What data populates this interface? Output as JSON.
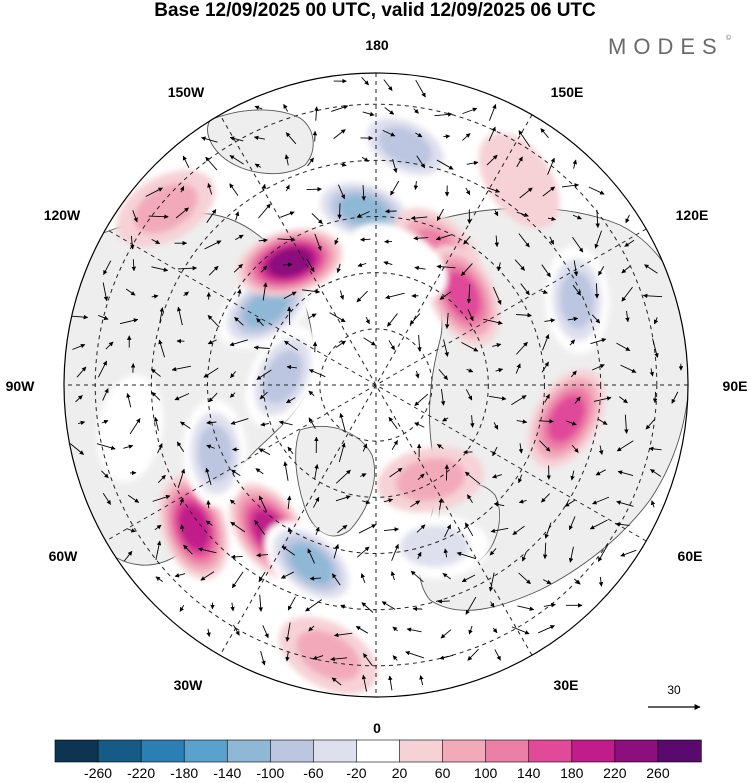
{
  "title": "Base 12/09/2025 00 UTC, valid 12/09/2025 06 UTC",
  "brand": {
    "name": "MODES",
    "mark": "©"
  },
  "longitude_labels": {
    "lon_180": "180",
    "lon_150e": "150E",
    "lon_120e": "120E",
    "lon_90e": "90E",
    "lon_60e": "60E",
    "lon_30e": "30E",
    "lon_0": "0",
    "lon_30w": "30W",
    "lon_60w": "60W",
    "lon_90w": "90W",
    "lon_120w": "120W",
    "lon_150w": "150W"
  },
  "vector_reference": {
    "label": "30"
  },
  "colorbar": {
    "ticks": [
      "-260",
      "-220",
      "-180",
      "-140",
      "-100",
      "-60",
      "-20",
      "20",
      "60",
      "100",
      "140",
      "180",
      "220",
      "260"
    ],
    "colors": [
      "#0d3552",
      "#165b86",
      "#2b7fb4",
      "#5aa2cd",
      "#8fb8d6",
      "#bcc6e0",
      "#dfe0ee",
      "#ffffff",
      "#f6d2d6",
      "#f2aabb",
      "#ec7fa6",
      "#e04a99",
      "#c01c8a",
      "#8c0f7d",
      "#5a0a6e"
    ]
  },
  "map_colors": {
    "land": "#eeeeee",
    "ocean": "#ffffff",
    "coast": "#555555",
    "grid": "#222222",
    "arrow": "#000000"
  },
  "anomaly_features": [
    {
      "value": 180,
      "bearing_deg": 232,
      "dist": 0.74
    },
    {
      "value": 200,
      "bearing_deg": 216,
      "dist": 0.58
    },
    {
      "value": -140,
      "bearing_deg": 200,
      "dist": 0.61
    },
    {
      "value": -100,
      "bearing_deg": 247,
      "dist": 0.56
    },
    {
      "value": -100,
      "bearing_deg": 275,
      "dist": 0.3
    },
    {
      "value": -140,
      "bearing_deg": 305,
      "dist": 0.43
    },
    {
      "value": 240,
      "bearing_deg": 325,
      "dist": 0.48
    },
    {
      "value": -140,
      "bearing_deg": 356,
      "dist": 0.56
    },
    {
      "value": 100,
      "bearing_deg": 25,
      "dist": 0.47
    },
    {
      "value": 160,
      "bearing_deg": 44,
      "dist": 0.4
    },
    {
      "value": 140,
      "bearing_deg": 100,
      "dist": 0.62
    },
    {
      "value": -120,
      "bearing_deg": 67,
      "dist": 0.7
    },
    {
      "value": -100,
      "bearing_deg": 7,
      "dist": 0.77
    },
    {
      "value": -40,
      "bearing_deg": 10,
      "dist": 0.4
    },
    {
      "value": 60,
      "bearing_deg": 150,
      "dist": 0.35
    },
    {
      "value": 80,
      "bearing_deg": 310,
      "dist": 0.88
    },
    {
      "value": -60,
      "bearing_deg": 160,
      "dist": 0.55
    },
    {
      "value": 60,
      "bearing_deg": 190,
      "dist": 0.88
    },
    {
      "value": -40,
      "bearing_deg": 260,
      "dist": 0.8
    },
    {
      "value": 40,
      "bearing_deg": 35,
      "dist": 0.8
    }
  ]
}
